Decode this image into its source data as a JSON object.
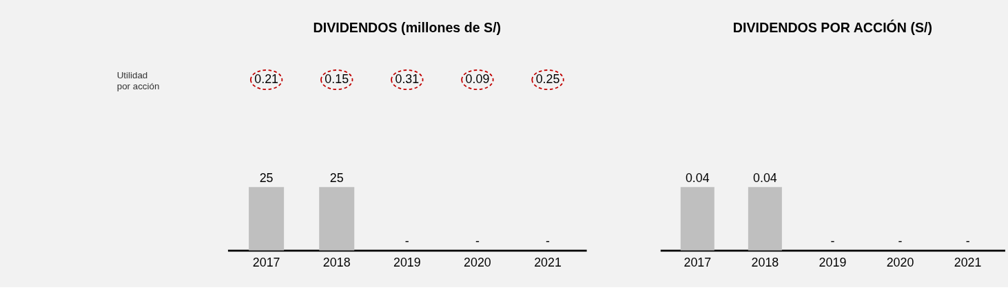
{
  "chart_data": [
    {
      "type": "bar",
      "title": "DIVIDENDOS (millones de S/)",
      "categories": [
        "2017",
        "2018",
        "2019",
        "2020",
        "2021"
      ],
      "values": [
        25,
        25,
        null,
        null,
        null
      ],
      "color": "#bfbfbf",
      "value_labels": [
        "25",
        "25",
        "-",
        "-",
        "-"
      ],
      "annotations": [
        "Utilidad\npor acción",
        "0.21",
        "0.15",
        "0.31",
        "0.09",
        "0.25"
      ]
    },
    {
      "type": "bar",
      "title": "DIVIDENDOS POR ACCIÓN (S/)",
      "categories": [
        "2017",
        "2018",
        "2019",
        "2020",
        "2021"
      ],
      "values": [
        0.04,
        0.04,
        null,
        null,
        null
      ],
      "color": "#bfbfbf",
      "value_labels": [
        "0.04",
        "0.04",
        "-",
        "-",
        "-"
      ]
    }
  ]
}
